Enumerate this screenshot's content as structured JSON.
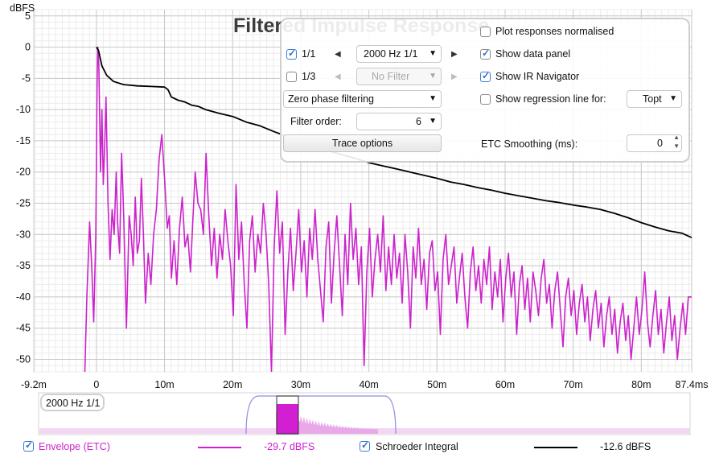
{
  "chart_title": "Filtered Impulse Response",
  "chart_data": {
    "type": "line",
    "title": "Filtered Impulse Response",
    "ylabel": "dBFS",
    "xlim": [
      -9.2,
      87.4
    ],
    "ylim": [
      -52,
      6
    ],
    "x_unit": "ms",
    "x_ticks": [
      {
        "v": -9.2,
        "label": "-9.2m"
      },
      {
        "v": 0,
        "label": "0"
      },
      {
        "v": 10,
        "label": "10m"
      },
      {
        "v": 20,
        "label": "20m"
      },
      {
        "v": 30,
        "label": "30m"
      },
      {
        "v": 40,
        "label": "40m"
      },
      {
        "v": 50,
        "label": "50m"
      },
      {
        "v": 60,
        "label": "60m"
      },
      {
        "v": 70,
        "label": "70m"
      },
      {
        "v": 80,
        "label": "80m"
      },
      {
        "v": 87.4,
        "label": "87.4ms"
      }
    ],
    "y_ticks": [
      5,
      0,
      -5,
      -10,
      -15,
      -20,
      -25,
      -30,
      -35,
      -40,
      -45,
      -50
    ],
    "grid": true,
    "series": [
      {
        "name": "Envelope (ETC)",
        "color": "#cc22cc",
        "points": [
          [
            -1.7,
            -52
          ],
          [
            -1.4,
            -40
          ],
          [
            -1.0,
            -28
          ],
          [
            -0.7,
            -35
          ],
          [
            -0.4,
            -44
          ],
          [
            -0.1,
            -30
          ],
          [
            0.1,
            -5
          ],
          [
            0.2,
            0
          ],
          [
            0.35,
            -3
          ],
          [
            0.6,
            -20
          ],
          [
            0.8,
            -10
          ],
          [
            1.0,
            -22
          ],
          [
            1.2,
            -16
          ],
          [
            1.4,
            -8
          ],
          [
            1.7,
            -25
          ],
          [
            2.0,
            -34
          ],
          [
            2.3,
            -26
          ],
          [
            2.6,
            -30
          ],
          [
            2.9,
            -20
          ],
          [
            3.1,
            -28
          ],
          [
            3.4,
            -33
          ],
          [
            3.7,
            -17
          ],
          [
            4.0,
            -27
          ],
          [
            4.4,
            -45
          ],
          [
            4.8,
            -27
          ],
          [
            5.1,
            -30
          ],
          [
            5.4,
            -35
          ],
          [
            5.7,
            -24
          ],
          [
            6.0,
            -33
          ],
          [
            6.3,
            -31
          ],
          [
            6.6,
            -21
          ],
          [
            6.9,
            -30
          ],
          [
            7.2,
            -41
          ],
          [
            7.6,
            -33
          ],
          [
            8.0,
            -38
          ],
          [
            8.4,
            -30
          ],
          [
            8.8,
            -26
          ],
          [
            9.2,
            -18
          ],
          [
            9.6,
            -14
          ],
          [
            10.0,
            -21
          ],
          [
            10.4,
            -29
          ],
          [
            10.7,
            -27
          ],
          [
            11.0,
            -37
          ],
          [
            11.4,
            -31
          ],
          [
            11.8,
            -38
          ],
          [
            12.2,
            -29
          ],
          [
            12.6,
            -24
          ],
          [
            13.0,
            -32
          ],
          [
            13.4,
            -30
          ],
          [
            13.8,
            -36
          ],
          [
            14.1,
            -29
          ],
          [
            14.5,
            -20
          ],
          [
            14.9,
            -25
          ],
          [
            15.3,
            -26
          ],
          [
            15.7,
            -30
          ],
          [
            16.1,
            -17
          ],
          [
            16.5,
            -27
          ],
          [
            16.9,
            -35
          ],
          [
            17.3,
            -29
          ],
          [
            17.7,
            -37
          ],
          [
            18.1,
            -30
          ],
          [
            18.5,
            -34
          ],
          [
            18.9,
            -26
          ],
          [
            19.3,
            -31
          ],
          [
            19.7,
            -35
          ],
          [
            20.1,
            -43
          ],
          [
            20.5,
            -22
          ],
          [
            20.9,
            -34
          ],
          [
            21.3,
            -28
          ],
          [
            21.7,
            -38
          ],
          [
            22.1,
            -45
          ],
          [
            22.5,
            -31
          ],
          [
            22.9,
            -27
          ],
          [
            23.3,
            -36
          ],
          [
            23.7,
            -30
          ],
          [
            24.1,
            -33
          ],
          [
            24.5,
            -25
          ],
          [
            24.9,
            -30
          ],
          [
            25.3,
            -38
          ],
          [
            25.7,
            -52
          ],
          [
            26.1,
            -32
          ],
          [
            26.5,
            -23
          ],
          [
            26.9,
            -33
          ],
          [
            27.3,
            -28
          ],
          [
            27.7,
            -46
          ],
          [
            28.1,
            -36
          ],
          [
            28.5,
            -29
          ],
          [
            28.9,
            -39
          ],
          [
            29.3,
            -33
          ],
          [
            29.7,
            -26
          ],
          [
            30.1,
            -36
          ],
          [
            30.5,
            -31
          ],
          [
            30.9,
            -40
          ],
          [
            31.3,
            -29
          ],
          [
            31.7,
            -34
          ],
          [
            32.1,
            -26
          ],
          [
            32.5,
            -34
          ],
          [
            32.9,
            -39
          ],
          [
            33.3,
            -44
          ],
          [
            33.7,
            -32
          ],
          [
            34.1,
            -28
          ],
          [
            34.5,
            -41
          ],
          [
            34.9,
            -33
          ],
          [
            35.3,
            -27
          ],
          [
            35.7,
            -35
          ],
          [
            36.1,
            -43
          ],
          [
            36.5,
            -30
          ],
          [
            36.9,
            -38
          ],
          [
            37.3,
            -25
          ],
          [
            37.7,
            -34
          ],
          [
            38.1,
            -29
          ],
          [
            38.5,
            -38
          ],
          [
            38.9,
            -32
          ],
          [
            39.3,
            -51
          ],
          [
            39.7,
            -36
          ],
          [
            40.1,
            -29
          ],
          [
            40.5,
            -40
          ],
          [
            40.9,
            -34
          ],
          [
            41.3,
            -30
          ],
          [
            41.7,
            -36
          ],
          [
            42.1,
            -27
          ],
          [
            42.5,
            -39
          ],
          [
            42.9,
            -32
          ],
          [
            43.3,
            -38
          ],
          [
            43.7,
            -30
          ],
          [
            44.1,
            -37
          ],
          [
            44.5,
            -33
          ],
          [
            44.9,
            -41
          ],
          [
            45.3,
            -30
          ],
          [
            45.7,
            -36
          ],
          [
            46.1,
            -45
          ],
          [
            46.5,
            -32
          ],
          [
            46.9,
            -37
          ],
          [
            47.3,
            -29
          ],
          [
            47.7,
            -38
          ],
          [
            48.1,
            -34
          ],
          [
            48.5,
            -42
          ],
          [
            48.9,
            -33
          ],
          [
            49.3,
            -31
          ],
          [
            49.7,
            -39
          ],
          [
            50.1,
            -36
          ],
          [
            50.5,
            -46
          ],
          [
            50.9,
            -34
          ],
          [
            51.3,
            -30
          ],
          [
            51.7,
            -38
          ],
          [
            52.1,
            -35
          ],
          [
            52.5,
            -32
          ],
          [
            52.9,
            -41
          ],
          [
            53.3,
            -37
          ],
          [
            53.7,
            -33
          ],
          [
            54.1,
            -40
          ],
          [
            54.5,
            -45
          ],
          [
            54.9,
            -36
          ],
          [
            55.3,
            -32
          ],
          [
            55.7,
            -39
          ],
          [
            56.1,
            -35
          ],
          [
            56.5,
            -41
          ],
          [
            56.9,
            -34
          ],
          [
            57.3,
            -38
          ],
          [
            57.7,
            -32
          ],
          [
            58.1,
            -42
          ],
          [
            58.5,
            -36
          ],
          [
            58.9,
            -40
          ],
          [
            59.3,
            -34
          ],
          [
            59.7,
            -44
          ],
          [
            60.1,
            -37
          ],
          [
            60.5,
            -33
          ],
          [
            60.9,
            -40
          ],
          [
            61.3,
            -36
          ],
          [
            61.7,
            -46
          ],
          [
            62.1,
            -38
          ],
          [
            62.5,
            -35
          ],
          [
            62.9,
            -42
          ],
          [
            63.3,
            -37
          ],
          [
            63.7,
            -44
          ],
          [
            64.1,
            -36
          ],
          [
            64.5,
            -39
          ],
          [
            64.9,
            -43
          ],
          [
            65.3,
            -37
          ],
          [
            65.7,
            -34
          ],
          [
            66.1,
            -41
          ],
          [
            66.5,
            -38
          ],
          [
            66.9,
            -45
          ],
          [
            67.3,
            -39
          ],
          [
            67.7,
            -36
          ],
          [
            68.1,
            -42
          ],
          [
            68.5,
            -48
          ],
          [
            68.9,
            -40
          ],
          [
            69.3,
            -37
          ],
          [
            69.7,
            -43
          ],
          [
            70.1,
            -39
          ],
          [
            70.5,
            -46
          ],
          [
            70.9,
            -41
          ],
          [
            71.3,
            -38
          ],
          [
            71.7,
            -44
          ],
          [
            72.1,
            -40
          ],
          [
            72.5,
            -47
          ],
          [
            72.9,
            -42
          ],
          [
            73.3,
            -39
          ],
          [
            73.7,
            -45
          ],
          [
            74.1,
            -41
          ],
          [
            74.5,
            -48
          ],
          [
            74.9,
            -43
          ],
          [
            75.3,
            -40
          ],
          [
            75.7,
            -46
          ],
          [
            76.1,
            -42
          ],
          [
            76.5,
            -49
          ],
          [
            76.9,
            -44
          ],
          [
            77.3,
            -41
          ],
          [
            77.7,
            -47
          ],
          [
            78.1,
            -43
          ],
          [
            78.5,
            -50
          ],
          [
            78.9,
            -45
          ],
          [
            79.3,
            -40
          ],
          [
            79.7,
            -46
          ],
          [
            80.1,
            -42
          ],
          [
            80.5,
            -36
          ],
          [
            80.9,
            -44
          ],
          [
            81.3,
            -48
          ],
          [
            81.7,
            -43
          ],
          [
            82.1,
            -39
          ],
          [
            82.5,
            -46
          ],
          [
            82.9,
            -42
          ],
          [
            83.3,
            -49
          ],
          [
            83.7,
            -44
          ],
          [
            84.1,
            -40
          ],
          [
            84.5,
            -47
          ],
          [
            84.9,
            -43
          ],
          [
            85.3,
            -50
          ],
          [
            85.7,
            -45
          ],
          [
            86.1,
            -41
          ],
          [
            86.5,
            -46
          ],
          [
            86.9,
            -40
          ],
          [
            87.4,
            -40
          ]
        ]
      },
      {
        "name": "Schroeder Integral",
        "color": "#000000",
        "points": [
          [
            0,
            0
          ],
          [
            0.3,
            -0.5
          ],
          [
            0.8,
            -3
          ],
          [
            1.5,
            -4.5
          ],
          [
            2.5,
            -5.5
          ],
          [
            4,
            -6
          ],
          [
            6,
            -6.2
          ],
          [
            8,
            -6.3
          ],
          [
            10,
            -6.4
          ],
          [
            10.5,
            -6.8
          ],
          [
            11,
            -8
          ],
          [
            12,
            -8.5
          ],
          [
            13,
            -8.8
          ],
          [
            14,
            -9.3
          ],
          [
            15,
            -9.5
          ],
          [
            16,
            -10
          ],
          [
            18,
            -10.6
          ],
          [
            20,
            -11.1
          ],
          [
            22,
            -12
          ],
          [
            24,
            -12.6
          ],
          [
            26,
            -13.5
          ],
          [
            28,
            -14.3
          ],
          [
            30,
            -15.2
          ],
          [
            32,
            -16
          ],
          [
            34,
            -16.6
          ],
          [
            36,
            -17.2
          ],
          [
            38,
            -17.8
          ],
          [
            40,
            -18.5
          ],
          [
            42,
            -19
          ],
          [
            44,
            -19.5
          ],
          [
            46,
            -20
          ],
          [
            48,
            -20.5
          ],
          [
            50,
            -21
          ],
          [
            52,
            -21.6
          ],
          [
            54,
            -22
          ],
          [
            56,
            -22.5
          ],
          [
            58,
            -22.9
          ],
          [
            60,
            -23.4
          ],
          [
            62,
            -23.8
          ],
          [
            64,
            -24.2
          ],
          [
            66,
            -24.6
          ],
          [
            68,
            -24.9
          ],
          [
            70,
            -25.3
          ],
          [
            72,
            -25.6
          ],
          [
            74,
            -26
          ],
          [
            76,
            -26.6
          ],
          [
            78,
            -27.3
          ],
          [
            80,
            -28.1
          ],
          [
            82,
            -28.8
          ],
          [
            84,
            -29.4
          ],
          [
            86,
            -29.8
          ],
          [
            87.4,
            -30.5
          ]
        ]
      }
    ]
  },
  "controls": {
    "plot_responses_normalised": "Plot responses normalised",
    "filter_1_label": "1/1",
    "filter_1_value": "2000 Hz 1/1",
    "filter_2_label": "1/3",
    "filter_2_value": "No Filter",
    "show_data_panel": "Show data panel",
    "show_ir_navigator": "Show IR Navigator",
    "show_regression": "Show regression line for:",
    "regression_value": "Topt",
    "phase_mode": "Zero phase filtering",
    "filter_order_label": "Filter order:",
    "filter_order_value": "6",
    "trace_options": "Trace options",
    "etc_smoothing_label": "ETC Smoothing (ms):",
    "etc_smoothing_value": "0"
  },
  "navigator": {
    "badge": "2000 Hz 1/1"
  },
  "legend": {
    "envelope_label": "Envelope (ETC)",
    "envelope_value": "-29.7 dBFS",
    "envelope_color": "#cc22cc",
    "schroeder_label": "Schroeder Integral",
    "schroeder_value": "-12.6 dBFS",
    "schroeder_color": "#000000"
  }
}
